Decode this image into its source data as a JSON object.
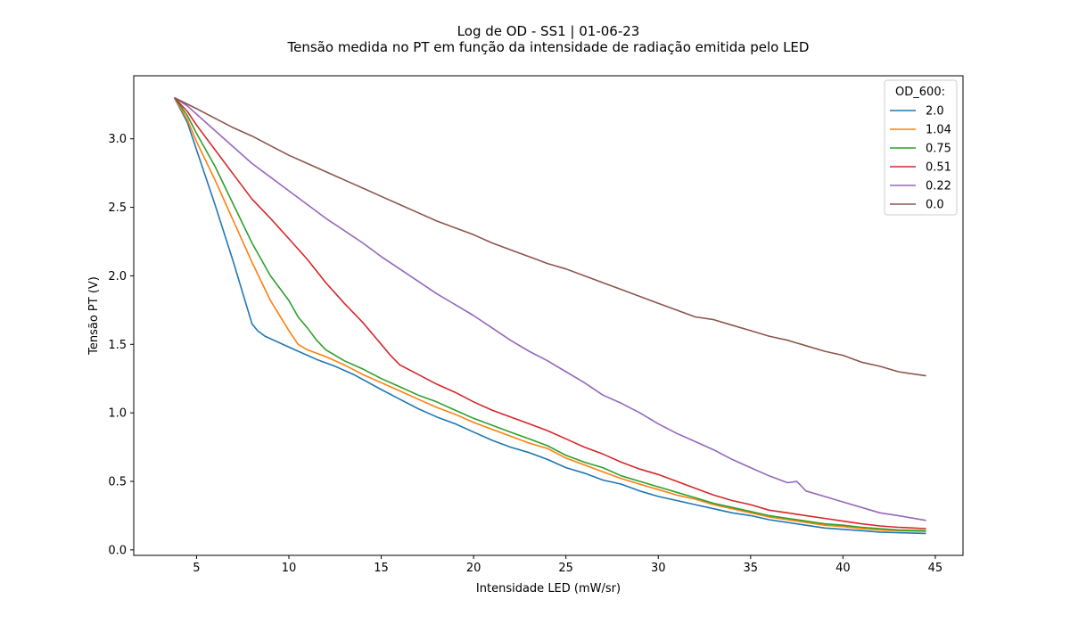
{
  "chart_data": {
    "type": "line",
    "title": "Log de OD - SS1 | 01-06-23",
    "subtitle": "Tensão medida no PT em função da intensidade de radiação emitida pelo LED",
    "xlabel": "Intensidade LED (mW/sr)",
    "ylabel": "Tensão PT (V)",
    "xlim": [
      1.6,
      46.5
    ],
    "ylim": [
      -0.04,
      3.46
    ],
    "xticks": [
      5,
      10,
      15,
      20,
      25,
      30,
      35,
      40,
      45
    ],
    "yticks": [
      0.0,
      0.5,
      1.0,
      1.5,
      2.0,
      2.5,
      3.0
    ],
    "xtick_labels": [
      "5",
      "10",
      "15",
      "20",
      "25",
      "30",
      "35",
      "40",
      "45"
    ],
    "ytick_labels": [
      "0.0",
      "0.5",
      "1.0",
      "1.5",
      "2.0",
      "2.5",
      "3.0"
    ],
    "grid": false,
    "legend_title": "OD_600:",
    "legend_position": "top-right",
    "series": [
      {
        "name": "2.0",
        "color": "#1f77b4",
        "x": [
          3.8,
          4.5,
          5.0,
          6.0,
          7.0,
          8.0,
          8.3,
          8.7,
          10.0,
          10.5,
          11.5,
          12.5,
          13.5,
          15.0,
          16.0,
          17.0,
          18.0,
          19.0,
          20.0,
          21.0,
          22.0,
          23.0,
          24.0,
          25.0,
          26.0,
          27.0,
          28.0,
          29.0,
          30.0,
          31.0,
          32.0,
          33.0,
          34.0,
          35.0,
          36.0,
          37.0,
          38.0,
          39.0,
          40.0,
          41.0,
          42.0,
          43.0,
          44.5
        ],
        "y": [
          3.3,
          3.12,
          2.92,
          2.52,
          2.1,
          1.65,
          1.6,
          1.56,
          1.48,
          1.45,
          1.39,
          1.34,
          1.28,
          1.17,
          1.1,
          1.03,
          0.97,
          0.92,
          0.86,
          0.8,
          0.75,
          0.71,
          0.66,
          0.6,
          0.56,
          0.51,
          0.48,
          0.43,
          0.39,
          0.36,
          0.33,
          0.3,
          0.27,
          0.25,
          0.22,
          0.2,
          0.18,
          0.16,
          0.15,
          0.14,
          0.13,
          0.125,
          0.12
        ]
      },
      {
        "name": "1.04",
        "color": "#ff7f0e",
        "x": [
          3.8,
          4.5,
          5.0,
          6.0,
          7.0,
          8.0,
          9.0,
          10.0,
          10.5,
          11.0,
          12.0,
          13.0,
          14.0,
          15.0,
          16.0,
          17.0,
          18.0,
          19.0,
          20.0,
          21.0,
          22.0,
          23.0,
          24.0,
          25.0,
          26.0,
          27.0,
          28.0,
          29.0,
          30.0,
          31.0,
          32.0,
          33.0,
          34.0,
          35.0,
          36.0,
          37.0,
          38.0,
          39.0,
          40.0,
          41.0,
          42.0,
          43.0,
          44.5
        ],
        "y": [
          3.3,
          3.14,
          2.98,
          2.7,
          2.4,
          2.1,
          1.82,
          1.6,
          1.5,
          1.46,
          1.41,
          1.35,
          1.28,
          1.22,
          1.16,
          1.1,
          1.04,
          0.99,
          0.93,
          0.88,
          0.83,
          0.78,
          0.74,
          0.67,
          0.62,
          0.57,
          0.52,
          0.48,
          0.44,
          0.4,
          0.37,
          0.33,
          0.3,
          0.27,
          0.24,
          0.22,
          0.2,
          0.18,
          0.17,
          0.155,
          0.145,
          0.14,
          0.135
        ]
      },
      {
        "name": "0.75",
        "color": "#2ca02c",
        "x": [
          3.8,
          4.5,
          5.0,
          6.0,
          7.0,
          8.0,
          9.0,
          10.0,
          10.5,
          11.0,
          11.5,
          12.0,
          12.5,
          13.0,
          14.0,
          15.0,
          16.0,
          17.0,
          18.0,
          19.0,
          20.0,
          21.0,
          22.0,
          23.0,
          24.0,
          25.0,
          26.0,
          27.0,
          28.0,
          29.0,
          30.0,
          31.0,
          32.0,
          33.0,
          34.0,
          35.0,
          36.0,
          37.0,
          38.0,
          39.0,
          40.0,
          41.0,
          42.0,
          43.0,
          44.5
        ],
        "y": [
          3.3,
          3.17,
          3.04,
          2.8,
          2.52,
          2.24,
          2.0,
          1.82,
          1.7,
          1.62,
          1.53,
          1.46,
          1.42,
          1.38,
          1.32,
          1.25,
          1.19,
          1.13,
          1.08,
          1.02,
          0.96,
          0.91,
          0.86,
          0.81,
          0.76,
          0.69,
          0.64,
          0.6,
          0.54,
          0.5,
          0.46,
          0.42,
          0.38,
          0.34,
          0.31,
          0.28,
          0.25,
          0.23,
          0.21,
          0.19,
          0.18,
          0.165,
          0.155,
          0.145,
          0.14
        ]
      },
      {
        "name": "0.51",
        "color": "#d62728",
        "x": [
          3.8,
          4.5,
          5.0,
          6.0,
          7.0,
          8.0,
          9.0,
          10.0,
          11.0,
          12.0,
          13.0,
          14.0,
          15.0,
          15.5,
          16.0,
          17.0,
          18.0,
          19.0,
          20.0,
          21.0,
          22.0,
          23.0,
          24.0,
          25.0,
          26.0,
          27.0,
          28.0,
          29.0,
          30.0,
          31.0,
          32.0,
          33.0,
          34.0,
          35.0,
          36.0,
          37.0,
          38.0,
          39.0,
          40.0,
          41.0,
          42.0,
          43.0,
          44.5
        ],
        "y": [
          3.3,
          3.2,
          3.1,
          2.92,
          2.74,
          2.56,
          2.42,
          2.27,
          2.12,
          1.95,
          1.8,
          1.66,
          1.5,
          1.42,
          1.35,
          1.28,
          1.21,
          1.15,
          1.08,
          1.02,
          0.97,
          0.92,
          0.87,
          0.81,
          0.75,
          0.7,
          0.64,
          0.59,
          0.55,
          0.5,
          0.45,
          0.4,
          0.36,
          0.33,
          0.29,
          0.27,
          0.25,
          0.23,
          0.21,
          0.19,
          0.175,
          0.165,
          0.155
        ]
      },
      {
        "name": "0.22",
        "color": "#9467bd",
        "x": [
          3.8,
          4.5,
          5.0,
          6.0,
          7.0,
          8.0,
          9.0,
          10.0,
          11.0,
          12.0,
          13.0,
          14.0,
          15.0,
          16.0,
          17.0,
          18.0,
          19.0,
          20.0,
          21.0,
          22.0,
          23.0,
          24.0,
          25.0,
          26.0,
          27.0,
          28.0,
          29.0,
          30.0,
          31.0,
          32.0,
          33.0,
          34.0,
          35.0,
          36.0,
          37.0,
          37.5,
          38.0,
          39.0,
          40.0,
          41.0,
          42.0,
          43.0,
          44.5
        ],
        "y": [
          3.3,
          3.24,
          3.18,
          3.06,
          2.94,
          2.82,
          2.72,
          2.62,
          2.52,
          2.42,
          2.33,
          2.24,
          2.14,
          2.05,
          1.96,
          1.87,
          1.79,
          1.71,
          1.62,
          1.53,
          1.45,
          1.38,
          1.3,
          1.22,
          1.13,
          1.07,
          1.0,
          0.92,
          0.85,
          0.79,
          0.73,
          0.66,
          0.6,
          0.54,
          0.49,
          0.5,
          0.43,
          0.39,
          0.35,
          0.31,
          0.27,
          0.25,
          0.215
        ]
      },
      {
        "name": "0.0",
        "color": "#8c564b",
        "x": [
          3.8,
          5.0,
          6.0,
          7.0,
          8.0,
          9.0,
          10.0,
          11.0,
          12.0,
          13.0,
          14.0,
          15.0,
          16.0,
          17.0,
          18.0,
          19.0,
          20.0,
          21.0,
          22.0,
          23.0,
          24.0,
          25.0,
          26.0,
          27.0,
          28.0,
          29.0,
          30.0,
          31.0,
          32.0,
          33.0,
          34.0,
          35.0,
          36.0,
          37.0,
          38.0,
          39.0,
          40.0,
          41.0,
          42.0,
          43.0,
          44.5
        ],
        "y": [
          3.3,
          3.22,
          3.15,
          3.08,
          3.02,
          2.95,
          2.88,
          2.82,
          2.76,
          2.7,
          2.64,
          2.58,
          2.52,
          2.46,
          2.4,
          2.35,
          2.3,
          2.24,
          2.19,
          2.14,
          2.09,
          2.05,
          2.0,
          1.95,
          1.9,
          1.85,
          1.8,
          1.75,
          1.7,
          1.68,
          1.64,
          1.6,
          1.56,
          1.53,
          1.49,
          1.45,
          1.42,
          1.37,
          1.34,
          1.3,
          1.27
        ]
      }
    ]
  }
}
